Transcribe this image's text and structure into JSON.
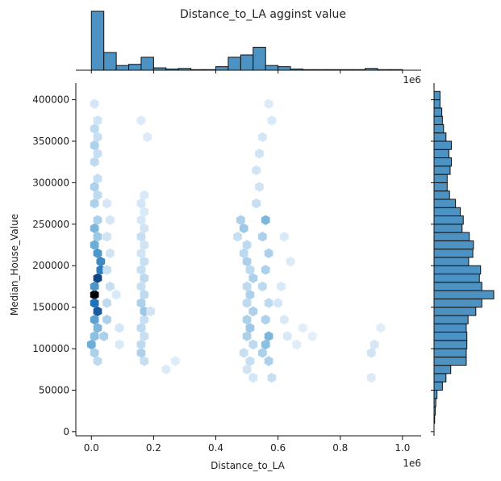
{
  "chart_data": {
    "type": "hexbin",
    "title": "Distance_to_LA agginst value",
    "xlabel": "Distance_to_LA",
    "ylabel": "Median_House_Value",
    "x_offset_label": "1e6",
    "y_top_offset_label": "1e6",
    "xlim": [
      -50000,
      1060000
    ],
    "ylim": [
      -5000,
      420000
    ],
    "x_ticks": [
      0.0,
      0.2,
      0.4,
      0.6,
      0.8,
      1.0
    ],
    "x_tick_labels": [
      "0.0",
      "0.2",
      "0.4",
      "0.6",
      "0.8",
      "1.0"
    ],
    "y_ticks": [
      0,
      50000,
      100000,
      150000,
      200000,
      250000,
      300000,
      350000,
      400000
    ],
    "y_tick_labels": [
      "0",
      "50000",
      "100000",
      "150000",
      "200000",
      "250000",
      "300000",
      "350000",
      "400000"
    ],
    "color": "#1f77b4",
    "hist_fill": "#4c92c3",
    "x_marginal_hist": {
      "bin_edges_1e6": [
        0.0,
        0.04,
        0.08,
        0.12,
        0.16,
        0.2,
        0.24,
        0.28,
        0.32,
        0.36,
        0.4,
        0.44,
        0.48,
        0.52,
        0.56,
        0.6,
        0.64,
        0.68,
        0.72,
        0.76,
        0.8,
        0.84,
        0.88,
        0.92,
        0.96,
        1.0,
        1.04
      ],
      "relative_heights": [
        1.0,
        0.3,
        0.08,
        0.1,
        0.22,
        0.04,
        0.02,
        0.03,
        0.01,
        0.01,
        0.06,
        0.22,
        0.26,
        0.39,
        0.08,
        0.06,
        0.02,
        0.01,
        0.01,
        0.01,
        0.01,
        0.01,
        0.03,
        0.01,
        0.01,
        0.0
      ]
    },
    "y_marginal_hist": {
      "bin_edges": [
        0,
        10000,
        20000,
        30000,
        40000,
        50000,
        60000,
        70000,
        80000,
        90000,
        100000,
        110000,
        120000,
        130000,
        140000,
        150000,
        160000,
        170000,
        180000,
        190000,
        200000,
        210000,
        220000,
        230000,
        240000,
        250000,
        260000,
        270000,
        280000,
        290000,
        300000,
        310000,
        320000,
        330000,
        340000,
        350000,
        360000,
        370000,
        380000,
        390000,
        400000,
        410000
      ],
      "relative_heights": [
        0.0,
        0.01,
        0.02,
        0.03,
        0.05,
        0.14,
        0.2,
        0.28,
        0.54,
        0.54,
        0.55,
        0.55,
        0.54,
        0.57,
        0.7,
        0.8,
        1.0,
        0.8,
        0.76,
        0.78,
        0.58,
        0.65,
        0.66,
        0.59,
        0.47,
        0.49,
        0.44,
        0.36,
        0.26,
        0.22,
        0.22,
        0.27,
        0.29,
        0.25,
        0.29,
        0.2,
        0.16,
        0.14,
        0.13,
        0.1,
        0.1
      ]
    },
    "hex_density_grid_note": "hexbin counts shown by color intensity, ranging from very light blue to black",
    "hexbin_cells": [
      [
        0.01,
        165000,
        1.0
      ],
      [
        0.01,
        155000,
        0.75
      ],
      [
        0.01,
        175000,
        0.6
      ],
      [
        0.02,
        185000,
        0.85
      ],
      [
        0.02,
        145000,
        0.8
      ],
      [
        0.03,
        195000,
        0.7
      ],
      [
        0.03,
        205000,
        0.65
      ],
      [
        0.02,
        215000,
        0.6
      ],
      [
        0.01,
        225000,
        0.5
      ],
      [
        0.02,
        235000,
        0.35
      ],
      [
        0.01,
        245000,
        0.45
      ],
      [
        0.02,
        255000,
        0.3
      ],
      [
        0.01,
        135000,
        0.55
      ],
      [
        0.02,
        125000,
        0.45
      ],
      [
        0.01,
        115000,
        0.4
      ],
      [
        0.0,
        105000,
        0.5
      ],
      [
        0.01,
        95000,
        0.3
      ],
      [
        0.02,
        85000,
        0.25
      ],
      [
        0.01,
        275000,
        0.3
      ],
      [
        0.02,
        285000,
        0.25
      ],
      [
        0.01,
        295000,
        0.3
      ],
      [
        0.02,
        305000,
        0.2
      ],
      [
        0.01,
        325000,
        0.25
      ],
      [
        0.02,
        335000,
        0.2
      ],
      [
        0.01,
        345000,
        0.3
      ],
      [
        0.02,
        355000,
        0.2
      ],
      [
        0.01,
        365000,
        0.25
      ],
      [
        0.02,
        375000,
        0.15
      ],
      [
        0.01,
        395000,
        0.12
      ],
      [
        0.04,
        115000,
        0.3
      ],
      [
        0.05,
        135000,
        0.3
      ],
      [
        0.05,
        155000,
        0.25
      ],
      [
        0.06,
        175000,
        0.2
      ],
      [
        0.05,
        195000,
        0.2
      ],
      [
        0.06,
        215000,
        0.15
      ],
      [
        0.05,
        235000,
        0.15
      ],
      [
        0.06,
        255000,
        0.12
      ],
      [
        0.05,
        275000,
        0.12
      ],
      [
        0.08,
        165000,
        0.1
      ],
      [
        0.09,
        125000,
        0.12
      ],
      [
        0.09,
        105000,
        0.1
      ],
      [
        0.16,
        125000,
        0.25
      ],
      [
        0.17,
        135000,
        0.2
      ],
      [
        0.17,
        145000,
        0.35
      ],
      [
        0.16,
        155000,
        0.3
      ],
      [
        0.17,
        165000,
        0.25
      ],
      [
        0.16,
        175000,
        0.2
      ],
      [
        0.17,
        185000,
        0.25
      ],
      [
        0.16,
        195000,
        0.2
      ],
      [
        0.17,
        205000,
        0.2
      ],
      [
        0.16,
        215000,
        0.15
      ],
      [
        0.17,
        225000,
        0.15
      ],
      [
        0.16,
        235000,
        0.2
      ],
      [
        0.17,
        245000,
        0.15
      ],
      [
        0.16,
        255000,
        0.12
      ],
      [
        0.17,
        265000,
        0.1
      ],
      [
        0.16,
        275000,
        0.12
      ],
      [
        0.17,
        285000,
        0.1
      ],
      [
        0.16,
        95000,
        0.3
      ],
      [
        0.17,
        85000,
        0.2
      ],
      [
        0.16,
        105000,
        0.25
      ],
      [
        0.17,
        115000,
        0.2
      ],
      [
        0.19,
        145000,
        0.15
      ],
      [
        0.18,
        355000,
        0.08
      ],
      [
        0.16,
        375000,
        0.08
      ],
      [
        0.24,
        75000,
        0.08
      ],
      [
        0.27,
        85000,
        0.06
      ],
      [
        0.47,
        235000,
        0.2
      ],
      [
        0.48,
        255000,
        0.3
      ],
      [
        0.49,
        245000,
        0.35
      ],
      [
        0.5,
        225000,
        0.25
      ],
      [
        0.49,
        215000,
        0.25
      ],
      [
        0.5,
        205000,
        0.3
      ],
      [
        0.51,
        195000,
        0.25
      ],
      [
        0.52,
        185000,
        0.3
      ],
      [
        0.5,
        175000,
        0.25
      ],
      [
        0.51,
        165000,
        0.3
      ],
      [
        0.5,
        155000,
        0.25
      ],
      [
        0.52,
        145000,
        0.3
      ],
      [
        0.5,
        135000,
        0.3
      ],
      [
        0.51,
        125000,
        0.35
      ],
      [
        0.5,
        115000,
        0.3
      ],
      [
        0.52,
        105000,
        0.25
      ],
      [
        0.49,
        95000,
        0.2
      ],
      [
        0.51,
        85000,
        0.2
      ],
      [
        0.5,
        75000,
        0.15
      ],
      [
        0.52,
        65000,
        0.12
      ],
      [
        0.53,
        275000,
        0.2
      ],
      [
        0.54,
        295000,
        0.15
      ],
      [
        0.53,
        315000,
        0.15
      ],
      [
        0.54,
        335000,
        0.15
      ],
      [
        0.55,
        355000,
        0.12
      ],
      [
        0.56,
        255000,
        0.45
      ],
      [
        0.55,
        235000,
        0.3
      ],
      [
        0.57,
        215000,
        0.3
      ],
      [
        0.56,
        195000,
        0.3
      ],
      [
        0.55,
        175000,
        0.25
      ],
      [
        0.57,
        155000,
        0.25
      ],
      [
        0.56,
        135000,
        0.3
      ],
      [
        0.57,
        115000,
        0.45
      ],
      [
        0.56,
        105000,
        0.4
      ],
      [
        0.55,
        95000,
        0.3
      ],
      [
        0.57,
        85000,
        0.3
      ],
      [
        0.58,
        65000,
        0.2
      ],
      [
        0.58,
        375000,
        0.1
      ],
      [
        0.57,
        395000,
        0.08
      ],
      [
        0.6,
        155000,
        0.12
      ],
      [
        0.61,
        175000,
        0.1
      ],
      [
        0.62,
        135000,
        0.1
      ],
      [
        0.63,
        115000,
        0.1
      ],
      [
        0.62,
        235000,
        0.1
      ],
      [
        0.64,
        205000,
        0.08
      ],
      [
        0.66,
        105000,
        0.06
      ],
      [
        0.68,
        125000,
        0.05
      ],
      [
        0.71,
        115000,
        0.04
      ],
      [
        0.9,
        95000,
        0.15
      ],
      [
        0.91,
        105000,
        0.12
      ],
      [
        0.9,
        65000,
        0.08
      ],
      [
        0.93,
        125000,
        0.05
      ]
    ]
  }
}
